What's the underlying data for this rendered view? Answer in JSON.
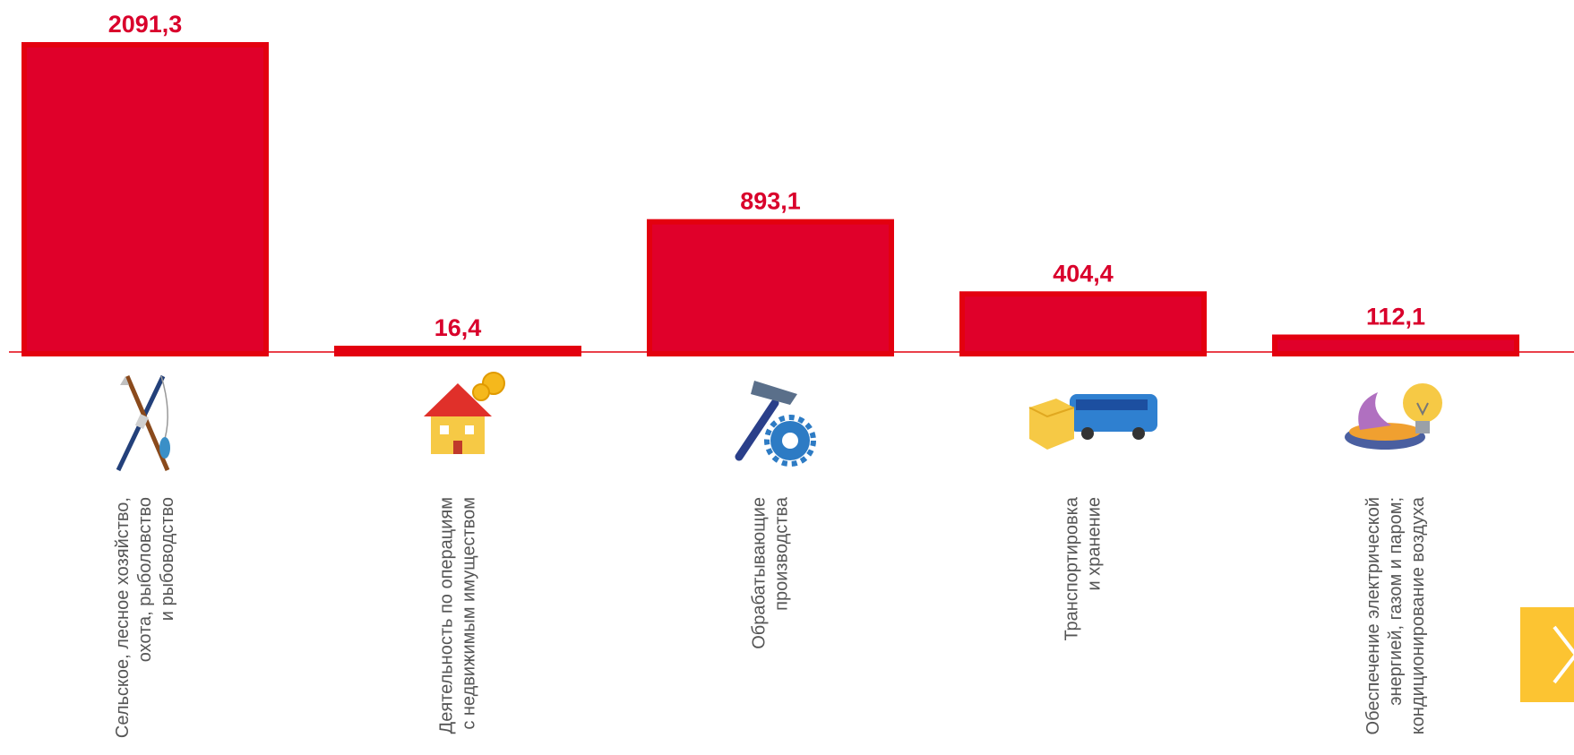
{
  "chart_data": {
    "type": "bar",
    "categories": [
      [
        "Сельское, лесное хозяйство,",
        "охота, рыболовство",
        "и рыбоводство"
      ],
      [
        "Деятельность по операциям",
        "с недвижимым имуществом"
      ],
      [
        "Обрабатывающие",
        "производства"
      ],
      [
        "Транспортировка",
        "и хранение"
      ],
      [
        "Обеспечение электрической",
        "энергией, газом и паром;",
        "кондиционирование воздуха"
      ]
    ],
    "values": [
      2091.3,
      16.4,
      893.1,
      404.4,
      112.1
    ],
    "value_labels": [
      "2091,3",
      "16,4",
      "893,1",
      "404,4",
      "112,1"
    ],
    "icons": [
      "fishing-hunting-icon",
      "house-coins-icon",
      "hammer-gear-icon",
      "bus-box-icon",
      "gas-flame-bulb-icon"
    ],
    "ylim": [
      0,
      2091.3
    ],
    "grid": false,
    "legend": "none",
    "colors": {
      "bar": "#e0002a",
      "bar_border": "#e3000f",
      "label": "#d9002b",
      "baseline": "#e3000f"
    }
  },
  "nav": {
    "next_icon": "chevron-right-icon",
    "color": "#fcc432"
  }
}
